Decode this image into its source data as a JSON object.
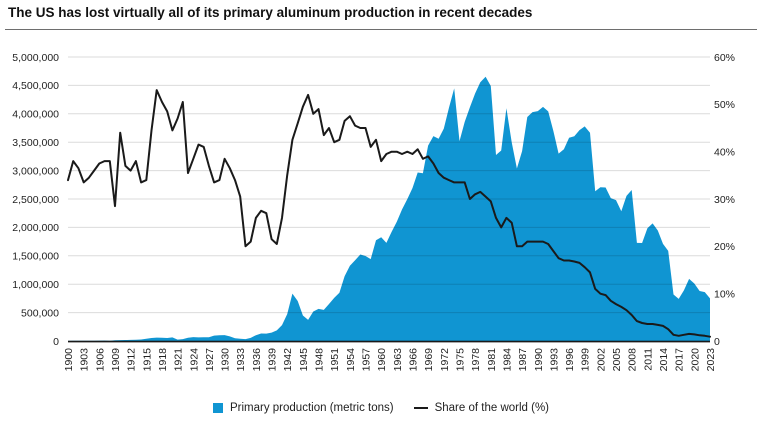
{
  "page": {
    "title": "The US has lost virtually all of its primary aluminum production in recent decades"
  },
  "chart_data": {
    "type": "area",
    "title": "The US has lost virtually all of its primary aluminum production in recent decades",
    "x_start": 1900,
    "x_step": 1,
    "x_end": 2023,
    "x_ticks": [
      "1900",
      "1903",
      "1906",
      "1909",
      "1912",
      "1915",
      "1918",
      "1921",
      "1924",
      "1927",
      "1930",
      "1933",
      "1936",
      "1939",
      "1942",
      "1945",
      "1948",
      "1951",
      "1954",
      "1957",
      "1960",
      "1963",
      "1966",
      "1969",
      "1972",
      "1975",
      "1978",
      "1981",
      "1984",
      "1987",
      "1990",
      "1993",
      "1996",
      "1999",
      "2002",
      "2005",
      "2008",
      "2011",
      "2014",
      "2017",
      "2020",
      "2023"
    ],
    "left_axis": {
      "range": [
        0,
        5000000
      ],
      "ticks": [
        "0",
        "500,000",
        "1,000,000",
        "1,500,000",
        "2,000,000",
        "2,500,000",
        "3,000,000",
        "3,500,000",
        "4,000,000",
        "4,500,000",
        "5,000,000"
      ]
    },
    "right_axis": {
      "range": [
        0,
        60
      ],
      "ticks": [
        "0",
        "10%",
        "20%",
        "30%",
        "40%",
        "50%",
        "60%"
      ]
    },
    "grid": "horizontal",
    "series": [
      {
        "name": "Primary production (metric tons)",
        "type": "area",
        "axis": "left",
        "color": "#1095d2",
        "values": [
          2300,
          3300,
          3700,
          3900,
          4100,
          5200,
          7300,
          8300,
          5900,
          13600,
          15200,
          17100,
          19600,
          21500,
          26400,
          40800,
          52600,
          59200,
          56600,
          52900,
          62900,
          24500,
          33600,
          58500,
          68100,
          63500,
          66200,
          67100,
          95500,
          102000,
          103900,
          80500,
          47600,
          38600,
          33600,
          54100,
          102000,
          132800,
          130100,
          148400,
          187100,
          280400,
          473400,
          834800,
          704300,
          449100,
          371900,
          518700,
          565300,
          547300,
          651800,
          759300,
          850900,
          1140700,
          1326000,
          1420300,
          1522800,
          1495800,
          1441700,
          1772600,
          1828200,
          1727400,
          1920800,
          2098400,
          2316000,
          2499000,
          2693000,
          2966000,
          2953000,
          3441000,
          3607000,
          3561000,
          3740000,
          4109000,
          4448000,
          3519000,
          3857000,
          4117000,
          4358000,
          4557000,
          4654000,
          4489000,
          3274000,
          3353000,
          4099000,
          3500000,
          3037000,
          3343000,
          3944000,
          4030000,
          4048000,
          4121000,
          4042000,
          3695000,
          3299000,
          3375000,
          3577000,
          3603000,
          3713000,
          3779000,
          3668000,
          2637000,
          2707000,
          2703000,
          2516000,
          2481000,
          2284000,
          2554000,
          2658000,
          1727000,
          1726000,
          1986000,
          2070000,
          1946000,
          1710000,
          1587000,
          818000,
          741000,
          891000,
          1093000,
          1012000,
          880000,
          861000,
          750000
        ]
      },
      {
        "name": "Share of the world (%)",
        "type": "line",
        "axis": "right",
        "color": "#1a1a1a",
        "values": [
          34,
          38,
          36.5,
          33.5,
          34.5,
          36,
          37.5,
          38,
          38,
          28.5,
          44,
          37,
          36,
          38,
          33.5,
          34,
          44.5,
          53,
          50.5,
          48.5,
          44.5,
          47,
          50.5,
          35.5,
          38.5,
          41.5,
          41,
          37,
          33.5,
          34,
          38.5,
          36.5,
          34,
          30.5,
          20,
          21,
          26,
          27.5,
          27,
          21.5,
          20.5,
          26,
          35,
          42.5,
          46,
          49.5,
          52,
          48,
          49,
          43.5,
          45,
          42,
          42.5,
          46.5,
          47.5,
          45.5,
          45,
          45,
          41,
          42.5,
          38,
          39.5,
          40,
          40,
          39.5,
          40,
          39.5,
          40.5,
          38.5,
          39,
          37.5,
          35.5,
          34.5,
          34,
          33.5,
          33.5,
          33.5,
          30,
          31,
          31.5,
          30.5,
          29.5,
          26,
          24,
          26,
          25,
          20,
          20,
          21,
          21,
          21,
          21,
          20.5,
          19,
          17.5,
          17,
          17,
          16.8,
          16.5,
          15.6,
          14.5,
          11,
          10,
          9.7,
          8.5,
          7.8,
          7.2,
          6.5,
          5.5,
          4.2,
          3.8,
          3.6,
          3.6,
          3.4,
          3.2,
          2.5,
          1.3,
          1.1,
          1.3,
          1.5,
          1.4,
          1.2,
          1.1,
          0.9
        ]
      }
    ],
    "legend": {
      "items": [
        {
          "label": "Primary production (metric tons)",
          "swatch": "square",
          "color": "#1095d2"
        },
        {
          "label": "Share of the world (%)",
          "swatch": "line",
          "color": "#1a1a1a"
        }
      ],
      "position": "bottom-center"
    }
  }
}
